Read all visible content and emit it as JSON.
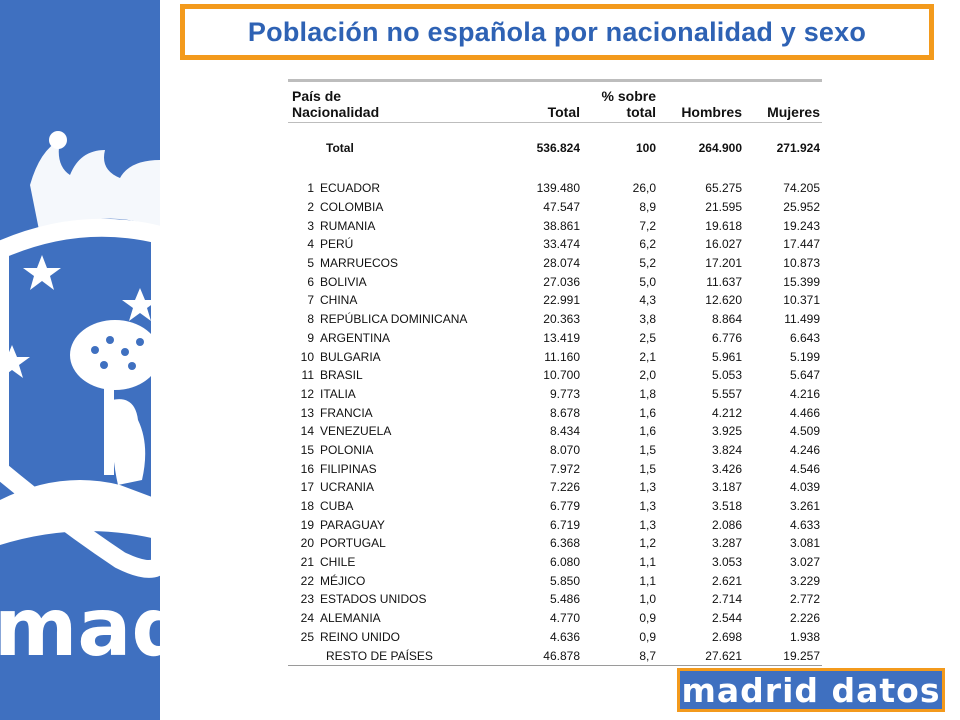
{
  "title": "Población no española por nacionalidad y sexo",
  "side_band": {
    "wordmark": "madrid",
    "color": "#3f70c0"
  },
  "table": {
    "headers": {
      "country": "País de\nNacionalidad",
      "total": "Total",
      "pct": "% sobre\ntotal",
      "men": "Hombres",
      "women": "Mujeres"
    },
    "total_row": {
      "label": "Total",
      "total": "536.824",
      "pct": "100",
      "men": "264.900",
      "women": "271.924"
    },
    "rows": [
      {
        "rank": "1",
        "country": "ECUADOR",
        "total": "139.480",
        "pct": "26,0",
        "men": "65.275",
        "women": "74.205"
      },
      {
        "rank": "2",
        "country": "COLOMBIA",
        "total": "47.547",
        "pct": "8,9",
        "men": "21.595",
        "women": "25.952"
      },
      {
        "rank": "3",
        "country": "RUMANIA",
        "total": "38.861",
        "pct": "7,2",
        "men": "19.618",
        "women": "19.243"
      },
      {
        "rank": "4",
        "country": "PERÚ",
        "total": "33.474",
        "pct": "6,2",
        "men": "16.027",
        "women": "17.447"
      },
      {
        "rank": "5",
        "country": "MARRUECOS",
        "total": "28.074",
        "pct": "5,2",
        "men": "17.201",
        "women": "10.873"
      },
      {
        "rank": "6",
        "country": "BOLIVIA",
        "total": "27.036",
        "pct": "5,0",
        "men": "11.637",
        "women": "15.399"
      },
      {
        "rank": "7",
        "country": "CHINA",
        "total": "22.991",
        "pct": "4,3",
        "men": "12.620",
        "women": "10.371"
      },
      {
        "rank": "8",
        "country": "REPÚBLICA DOMINICANA",
        "total": "20.363",
        "pct": "3,8",
        "men": "8.864",
        "women": "11.499"
      },
      {
        "rank": "9",
        "country": "ARGENTINA",
        "total": "13.419",
        "pct": "2,5",
        "men": "6.776",
        "women": "6.643"
      },
      {
        "rank": "10",
        "country": "BULGARIA",
        "total": "11.160",
        "pct": "2,1",
        "men": "5.961",
        "women": "5.199"
      },
      {
        "rank": "11",
        "country": "BRASIL",
        "total": "10.700",
        "pct": "2,0",
        "men": "5.053",
        "women": "5.647"
      },
      {
        "rank": "12",
        "country": "ITALIA",
        "total": "9.773",
        "pct": "1,8",
        "men": "5.557",
        "women": "4.216"
      },
      {
        "rank": "13",
        "country": "FRANCIA",
        "total": "8.678",
        "pct": "1,6",
        "men": "4.212",
        "women": "4.466"
      },
      {
        "rank": "14",
        "country": "VENEZUELA",
        "total": "8.434",
        "pct": "1,6",
        "men": "3.925",
        "women": "4.509"
      },
      {
        "rank": "15",
        "country": "POLONIA",
        "total": "8.070",
        "pct": "1,5",
        "men": "3.824",
        "women": "4.246"
      },
      {
        "rank": "16",
        "country": "FILIPINAS",
        "total": "7.972",
        "pct": "1,5",
        "men": "3.426",
        "women": "4.546"
      },
      {
        "rank": "17",
        "country": "UCRANIA",
        "total": "7.226",
        "pct": "1,3",
        "men": "3.187",
        "women": "4.039"
      },
      {
        "rank": "18",
        "country": "CUBA",
        "total": "6.779",
        "pct": "1,3",
        "men": "3.518",
        "women": "3.261"
      },
      {
        "rank": "19",
        "country": "PARAGUAY",
        "total": "6.719",
        "pct": "1,3",
        "men": "2.086",
        "women": "4.633"
      },
      {
        "rank": "20",
        "country": "PORTUGAL",
        "total": "6.368",
        "pct": "1,2",
        "men": "3.287",
        "women": "3.081"
      },
      {
        "rank": "21",
        "country": "CHILE",
        "total": "6.080",
        "pct": "1,1",
        "men": "3.053",
        "women": "3.027"
      },
      {
        "rank": "22",
        "country": "MÉJICO",
        "total": "5.850",
        "pct": "1,1",
        "men": "2.621",
        "women": "3.229"
      },
      {
        "rank": "23",
        "country": "ESTADOS UNIDOS",
        "total": "5.486",
        "pct": "1,0",
        "men": "2.714",
        "women": "2.772"
      },
      {
        "rank": "24",
        "country": "ALEMANIA",
        "total": "4.770",
        "pct": "0,9",
        "men": "2.544",
        "women": "2.226"
      },
      {
        "rank": "25",
        "country": "REINO UNIDO",
        "total": "4.636",
        "pct": "0,9",
        "men": "2.698",
        "women": "1.938"
      }
    ],
    "rest_row": {
      "label": "RESTO DE PAÍSES",
      "total": "46.878",
      "pct": "8,7",
      "men": "27.621",
      "women": "19.257"
    }
  },
  "logo": {
    "text": "madrid datos",
    "bg": "#3f70c0",
    "border": "#f39a1c"
  },
  "colors": {
    "title": "#2e62b4",
    "frame": "#f39a1c",
    "band": "#3f70c0"
  }
}
